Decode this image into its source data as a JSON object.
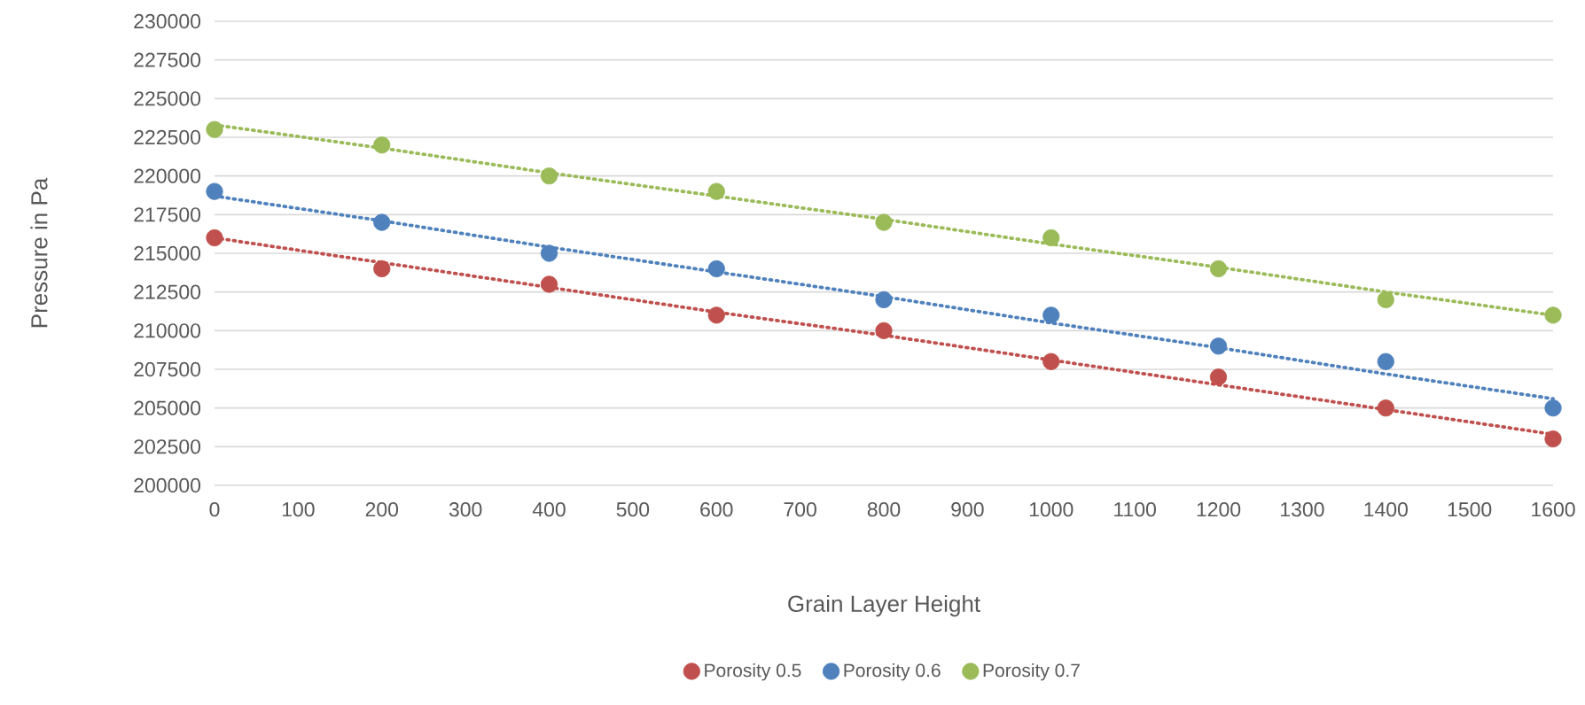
{
  "chart_data": {
    "type": "scatter",
    "xlabel": "Grain Layer Height",
    "ylabel": "Pressure in Pa",
    "xlim": [
      0,
      1600
    ],
    "xticks": [
      0,
      100,
      200,
      300,
      400,
      500,
      600,
      700,
      800,
      900,
      1000,
      1100,
      1200,
      1300,
      1400,
      1500,
      1600
    ],
    "ylim": [
      200000,
      230000
    ],
    "yticks": [
      200000,
      202500,
      205000,
      207500,
      210000,
      212500,
      215000,
      217500,
      220000,
      222500,
      225000,
      227500,
      230000
    ],
    "x": [
      0,
      200,
      400,
      600,
      800,
      1000,
      1200,
      1400,
      1600
    ],
    "grid": "y",
    "legend": "bottom",
    "series": [
      {
        "name": "Porosity 0.5",
        "color": "#c0504d",
        "marker": "circle",
        "values": [
          216000,
          214000,
          213000,
          211000,
          210000,
          208000,
          207000,
          205000,
          203000
        ]
      },
      {
        "name": "Porosity 0.6",
        "color": "#4f81bd",
        "marker": "circle",
        "values": [
          219000,
          217000,
          215000,
          214000,
          212000,
          211000,
          209000,
          208000,
          205000
        ]
      },
      {
        "name": "Porosity 0.7",
        "color": "#9bbb59",
        "marker": "circle",
        "values": [
          223000,
          222000,
          220000,
          219000,
          217000,
          216000,
          214000,
          212000,
          211000
        ]
      },
      {
        "type": "line",
        "color": "#c0504d",
        "values": [
          216000,
          214400,
          212800,
          211200,
          209700,
          208100,
          206500,
          204900,
          203300
        ],
        "marker": "none",
        "line_style": "dotted"
      },
      {
        "type": "line",
        "color": "#4f81bd",
        "values": [
          218700,
          217100,
          215400,
          213800,
          212200,
          210500,
          208900,
          207200,
          205600
        ],
        "marker": "none",
        "line_style": "dotted"
      },
      {
        "type": "line",
        "color": "#9bbb59",
        "values": [
          223300,
          221800,
          220200,
          218700,
          217200,
          215600,
          214100,
          212500,
          211000
        ],
        "marker": "none",
        "line_style": "dotted"
      }
    ]
  }
}
